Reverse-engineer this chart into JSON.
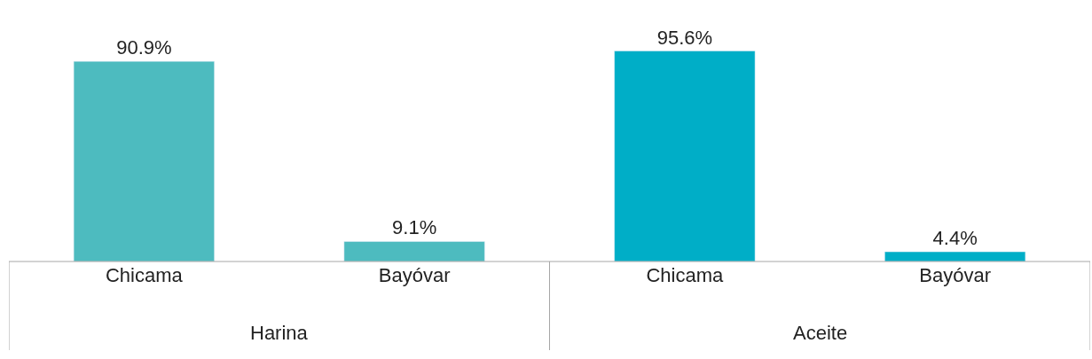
{
  "chart_data": {
    "type": "bar",
    "categories": [
      "Chicama",
      "Bayóvar",
      "Chicama",
      "Bayóvar"
    ],
    "series": [
      {
        "color": "#4dbbbf",
        "values": [
          90.9,
          9.1,
          null,
          null
        ],
        "value_labels": [
          "90.9%",
          "9.1%",
          null,
          null
        ]
      },
      {
        "color": "#00aec7",
        "values": [
          null,
          null,
          95.6,
          4.4
        ],
        "value_labels": [
          null,
          null,
          "95.6%",
          "4.4%"
        ]
      }
    ],
    "annotations": [
      "Harina",
      "Aceite"
    ]
  }
}
